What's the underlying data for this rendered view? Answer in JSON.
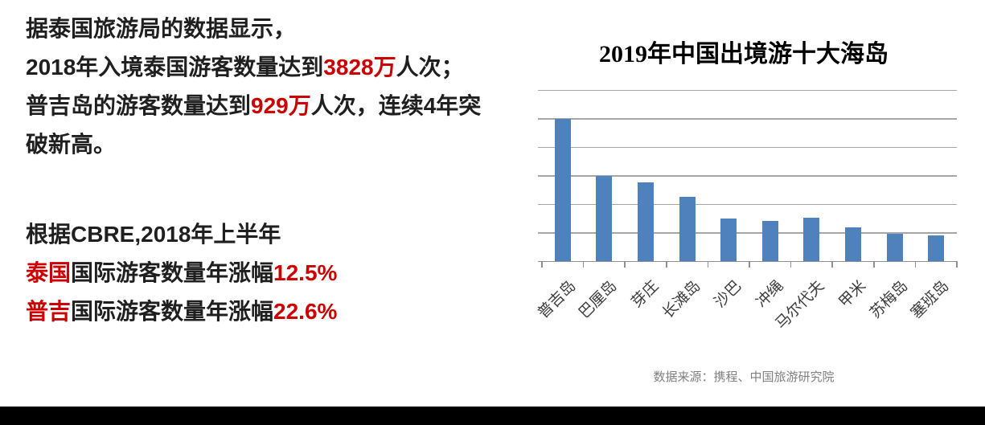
{
  "colors": {
    "accent_red": "#cc0000",
    "text_dark": "#1f1f1f",
    "bar_blue": "#4f81bd",
    "grid_gray": "#a6a6a6",
    "source_gray": "#808080",
    "footer_black": "#000000"
  },
  "left_panel": {
    "block1": {
      "l1": "据泰国旅游局的数据显示，",
      "l2a": "2018年入境泰国游客数量达到",
      "l2b": "3828万",
      "l2c": "人次；",
      "l3a": "普吉岛的游客数量达到",
      "l3b": "929万",
      "l3c": "人次，连续4年突",
      "l4": "破新高。"
    },
    "block2": {
      "l1": "根据CBRE,2018年上半年",
      "l2a": "泰国",
      "l2b": "国际游客数量年涨幅",
      "l2c": "12.5%",
      "l3a": "普吉",
      "l3b": "国际游客数量年涨幅",
      "l3c": "22.6%"
    }
  },
  "chart": {
    "title": "2019年中国出境游十大海岛",
    "source": "数据来源：携程、中国旅游研究院",
    "bar_color": "#4f81bd",
    "grid_color": "#a6a6a6"
  },
  "chart_data": {
    "type": "bar",
    "title": "2019年中国出境游十大海岛",
    "categories": [
      "普吉岛",
      "巴厘岛",
      "芽庄",
      "长滩岛",
      "沙巴",
      "冲绳",
      "马尔代夫",
      "甲米",
      "苏梅岛",
      "塞班岛"
    ],
    "values": [
      5.0,
      3.0,
      2.76,
      2.25,
      1.5,
      1.41,
      1.52,
      1.17,
      0.96,
      0.89
    ],
    "xlabel": "",
    "ylabel": "",
    "ylim": [
      0,
      6
    ],
    "grid_step": 1,
    "grid": true,
    "value_axis_labels_visible": false,
    "legend": "none",
    "x_tick_label_rotation_deg": 45,
    "source_note": "数据来源：携程、中国旅游研究院"
  }
}
